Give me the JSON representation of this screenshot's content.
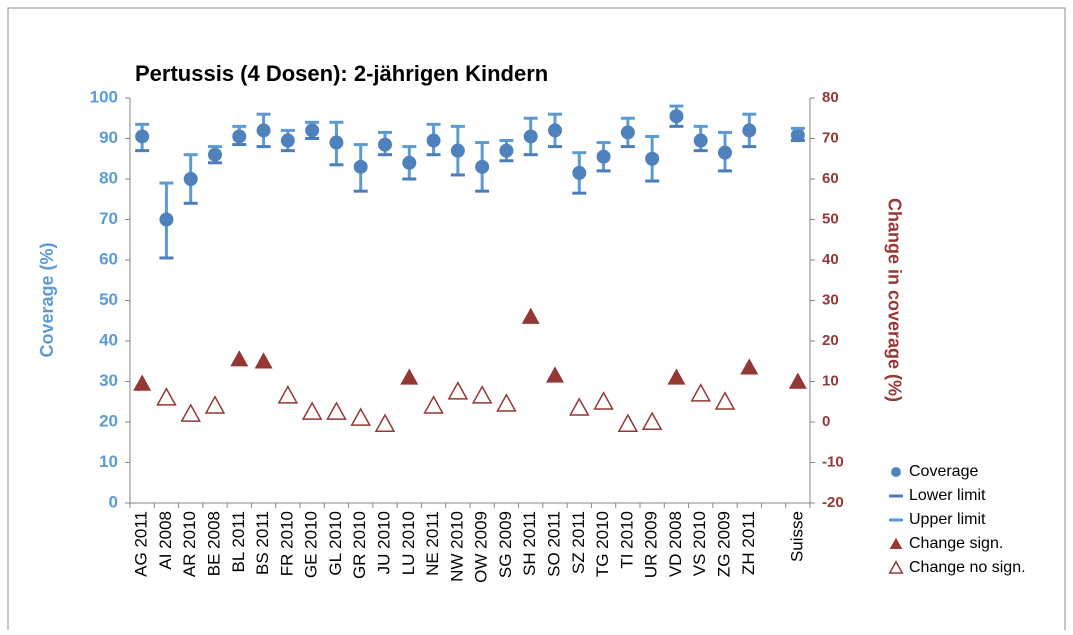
{
  "chart_data": {
    "type": "errorbar-scatter",
    "title": "Pertussis (4 Dosen): 2-jährigen Kindern",
    "y_label": "Coverage (%)",
    "y2_label": "Change in coverage (%)",
    "categories": [
      "AG 2011",
      "AI 2008",
      "AR 2010",
      "BE 2008",
      "BL 2011",
      "BS 2011",
      "FR 2010",
      "GE 2010",
      "GL 2010",
      "GR 2010",
      "JU 2010",
      "LU 2010",
      "NE 2011",
      "NW 2010",
      "OW 2009",
      "SG 2009",
      "SH 2011",
      "SO 2011",
      "SZ 2011",
      "TG 2010",
      "TI 2010",
      "UR 2009",
      "VD 2008",
      "VS 2010",
      "ZG 2009",
      "ZH 2011",
      null,
      "Suisse"
    ],
    "ylim": [
      0,
      100
    ],
    "yticks": [
      0,
      10,
      20,
      30,
      40,
      50,
      60,
      70,
      80,
      90,
      100
    ],
    "y2lim": [
      -20,
      80
    ],
    "y2ticks": [
      -20,
      -10,
      0,
      10,
      20,
      30,
      40,
      50,
      60,
      70,
      80
    ],
    "grid": false,
    "legend": "right",
    "series": [
      {
        "name": "Coverage",
        "color": "#4f81bd",
        "marker": "circle",
        "values": [
          90.5,
          70,
          80,
          86,
          90.5,
          92,
          89.5,
          92,
          89,
          83,
          88.5,
          84,
          89.5,
          87,
          83,
          87,
          90.5,
          92,
          81.5,
          85.5,
          91.5,
          85,
          95.5,
          89.5,
          86.5,
          92,
          null,
          90.8
        ]
      },
      {
        "name": "Lower limit",
        "color": "#4a7ebb",
        "marker": "dash",
        "values": [
          87,
          60.5,
          74,
          84,
          88.5,
          88,
          87,
          90,
          83.5,
          77,
          86,
          80,
          86,
          81,
          77,
          84.5,
          86,
          88,
          76.5,
          82,
          88,
          79.5,
          93,
          87,
          82,
          88,
          null,
          89.5
        ]
      },
      {
        "name": "Upper limit",
        "color": "#5b9bd5",
        "marker": "dash",
        "values": [
          93.5,
          79,
          86,
          88,
          93,
          96,
          92,
          94,
          94,
          88.5,
          91.5,
          88,
          93.5,
          93,
          89,
          89.5,
          95,
          96,
          86.5,
          89,
          95,
          90.5,
          98,
          93,
          91.5,
          96,
          null,
          92.5
        ]
      },
      {
        "name": "Change sign.",
        "color": "#953735",
        "marker": "triangle",
        "axis": "y2",
        "values": [
          9.5,
          null,
          null,
          null,
          15.5,
          15,
          null,
          null,
          null,
          null,
          null,
          11,
          null,
          null,
          null,
          null,
          26,
          11.5,
          null,
          null,
          null,
          null,
          11,
          null,
          null,
          13.5,
          null,
          10
        ]
      },
      {
        "name": "Change no sign.",
        "color": "#953735",
        "marker": "triangle-open",
        "axis": "y2",
        "values": [
          null,
          6,
          2,
          4,
          null,
          null,
          6.5,
          2.5,
          2.5,
          1,
          -0.5,
          null,
          4,
          7.5,
          6.5,
          4.5,
          null,
          null,
          3.5,
          5,
          -0.5,
          0,
          null,
          7,
          5,
          null,
          null,
          null
        ]
      }
    ]
  }
}
